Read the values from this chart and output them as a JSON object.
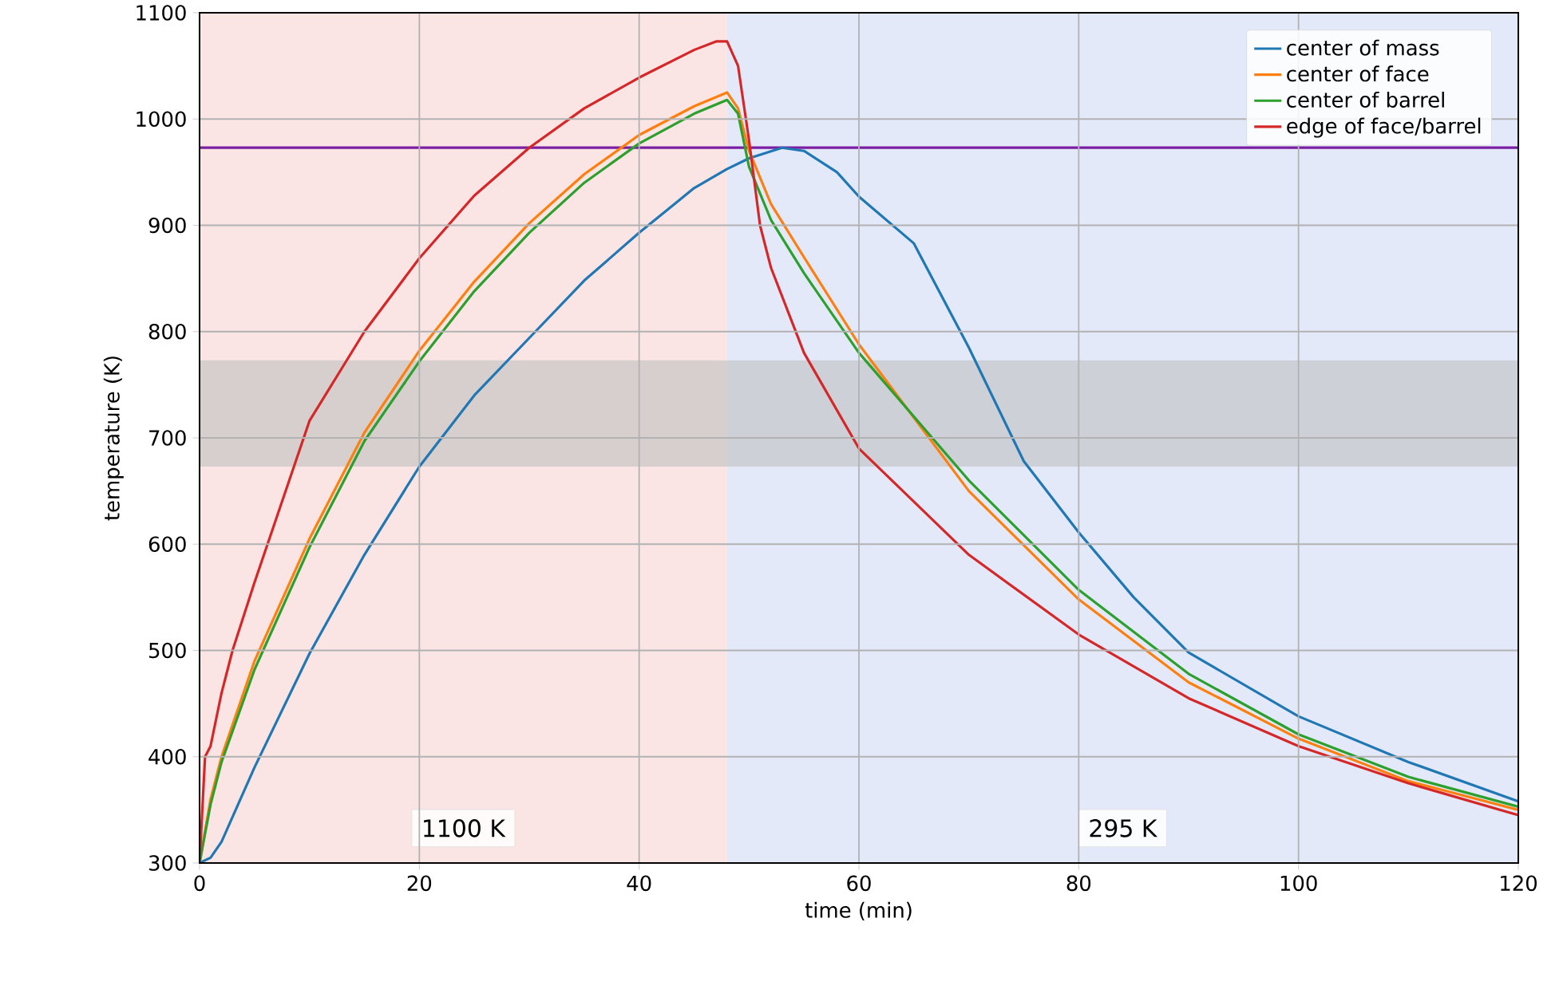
{
  "chart_data": {
    "type": "line",
    "xlabel": "time (min)",
    "ylabel": "temperature (K)",
    "xlim": [
      0,
      120
    ],
    "ylim": [
      300,
      1100
    ],
    "xticks": [
      0,
      20,
      40,
      60,
      80,
      100,
      120
    ],
    "yticks": [
      300,
      400,
      500,
      600,
      700,
      800,
      900,
      1000,
      1100
    ],
    "grid": true,
    "legend": "top right",
    "series": [
      {
        "name": "center of mass",
        "color": "#1f77b4",
        "x": [
          0,
          1,
          2,
          5,
          10,
          15,
          20,
          25,
          30,
          35,
          40,
          45,
          48,
          50,
          53,
          55,
          58,
          60,
          65,
          70,
          75,
          80,
          85,
          90,
          100,
          110,
          120
        ],
        "values": [
          300,
          305,
          320,
          390,
          497,
          590,
          673,
          740,
          794,
          848,
          893,
          935,
          953,
          963,
          973,
          970,
          950,
          927,
          883,
          785,
          678,
          611,
          550,
          498,
          438,
          395,
          358
        ]
      },
      {
        "name": "center of face",
        "color": "#ff7f0e",
        "x": [
          0,
          1,
          2,
          5,
          10,
          15,
          20,
          25,
          30,
          35,
          40,
          45,
          48,
          49,
          50,
          52,
          55,
          60,
          70,
          80,
          90,
          100,
          110,
          120
        ],
        "values": [
          300,
          360,
          400,
          490,
          605,
          705,
          782,
          847,
          902,
          948,
          985,
          1012,
          1025,
          1010,
          970,
          920,
          870,
          788,
          650,
          548,
          470,
          417,
          377,
          350
        ]
      },
      {
        "name": "center of barrel",
        "color": "#2ca02c",
        "x": [
          0,
          1,
          2,
          5,
          10,
          15,
          20,
          25,
          30,
          35,
          40,
          45,
          48,
          49,
          50,
          52,
          55,
          60,
          70,
          80,
          90,
          100,
          110,
          120
        ],
        "values": [
          300,
          355,
          395,
          482,
          597,
          697,
          772,
          838,
          893,
          940,
          977,
          1005,
          1018,
          1005,
          955,
          905,
          855,
          780,
          660,
          557,
          478,
          421,
          381,
          353
        ]
      },
      {
        "name": "edge of face/barrel",
        "color": "#d62728",
        "x": [
          0,
          0.5,
          1,
          2,
          3,
          5,
          10,
          15,
          20,
          25,
          30,
          35,
          40,
          45,
          47,
          48,
          49,
          50,
          51,
          52,
          55,
          60,
          70,
          80,
          90,
          100,
          110,
          120
        ],
        "values": [
          300,
          400,
          410,
          460,
          500,
          564,
          716,
          800,
          869,
          928,
          973,
          1010,
          1039,
          1065,
          1073,
          1073,
          1050,
          980,
          900,
          860,
          780,
          690,
          590,
          515,
          455,
          410,
          375,
          345
        ]
      }
    ],
    "bands": [
      {
        "axis": "x",
        "from": 0,
        "to": 48,
        "label": "1100 K",
        "color": "#fbe4e4"
      },
      {
        "axis": "x",
        "from": 48,
        "to": 120,
        "label": "295 K",
        "color": "#e4e9f9"
      },
      {
        "axis": "y",
        "from": 673,
        "to": 773,
        "color": "#bfbfbf"
      }
    ],
    "ref_lines": [
      {
        "axis": "y",
        "value": 973,
        "color": "#7b1fa2"
      }
    ]
  }
}
